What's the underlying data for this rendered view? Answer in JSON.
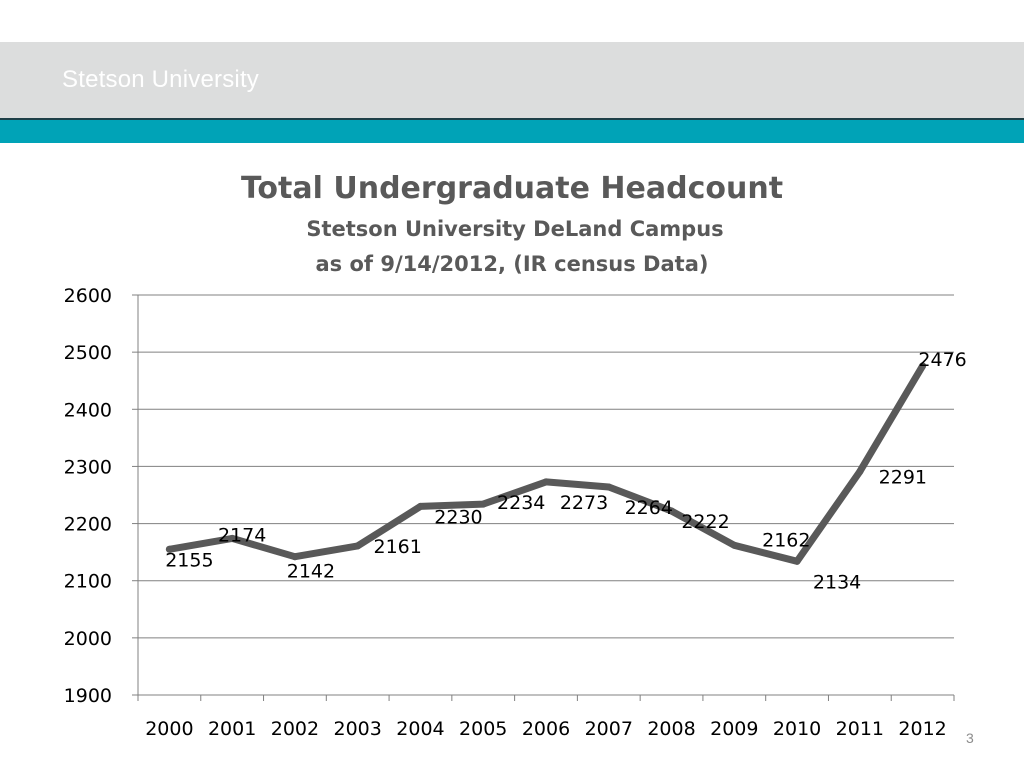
{
  "header": {
    "title": "Stetson University"
  },
  "page_number": "3",
  "colors": {
    "header_band": "#dcdddd",
    "accent_bar": "#00a3b7",
    "line": "#595959",
    "text": "#595959",
    "grid": "#808080"
  },
  "chart_data": {
    "type": "line",
    "title": "Total Undergraduate Headcount",
    "subtitle_1": "Stetson University DeLand Campus",
    "subtitle_2": "as of 9/14/2012,  (IR census Data)",
    "xlabel": "",
    "ylabel": "",
    "ylim": [
      1900,
      2600
    ],
    "yticks": [
      1900,
      2000,
      2100,
      2200,
      2300,
      2400,
      2500,
      2600
    ],
    "grid": true,
    "legend": "none",
    "categories": [
      "2000",
      "2001",
      "2002",
      "2003",
      "2004",
      "2005",
      "2006",
      "2007",
      "2008",
      "2009",
      "2010",
      "2011",
      "2012"
    ],
    "series": [
      {
        "values": [
          2155,
          2174,
          2142,
          2161,
          2230,
          2234,
          2273,
          2264,
          2222,
          2162,
          2134,
          2291,
          2476
        ]
      }
    ]
  }
}
